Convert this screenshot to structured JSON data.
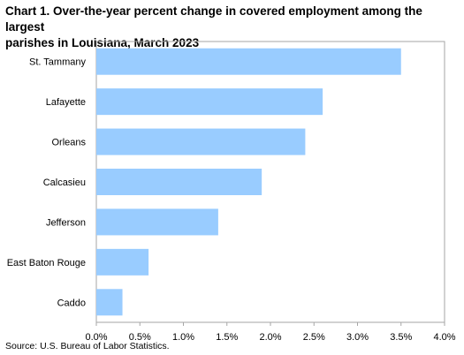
{
  "chart_data": {
    "type": "bar",
    "orientation": "horizontal",
    "title_line1": "Chart 1.  Over-the-year percent change in covered employment among the largest",
    "title_line2": "parishes in Louisiana, March 2023",
    "categories": [
      "St. Tammany",
      "Lafayette",
      "Orleans",
      "Calcasieu",
      "Jefferson",
      "East Baton Rouge",
      "Caddo"
    ],
    "values": [
      3.5,
      2.6,
      2.4,
      1.9,
      1.4,
      0.6,
      0.3
    ],
    "xlim": [
      0,
      4
    ],
    "xticks": [
      "0.0%",
      "0.5%",
      "1.0%",
      "1.5%",
      "2.0%",
      "2.5%",
      "3.0%",
      "3.5%",
      "4.0%"
    ],
    "xtick_values": [
      0,
      0.5,
      1.0,
      1.5,
      2.0,
      2.5,
      3.0,
      3.5,
      4.0
    ],
    "bar_color": "#99ccff",
    "grid": false,
    "source": "Source: U.S. Bureau of Labor Statistics."
  }
}
